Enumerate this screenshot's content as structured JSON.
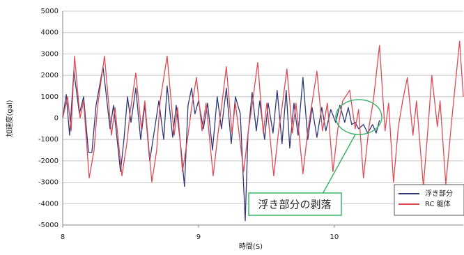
{
  "chart_data": {
    "type": "line",
    "xlabel": "時間(S)",
    "ylabel": "加速度(gal)",
    "xlim": [
      8,
      10.95
    ],
    "xticks": [
      8,
      9,
      10
    ],
    "ylim": [
      -5000,
      5000
    ],
    "yticks": [
      -5000,
      -4000,
      -3000,
      -2000,
      -1000,
      0,
      1000,
      2000,
      3000,
      4000,
      5000
    ],
    "grid": true,
    "legend": "lower right",
    "annotation": "浮き部分の剥落",
    "series": [
      {
        "name": "浮き部分",
        "color": "#2e3878",
        "x": [
          8.0,
          8.026,
          8.051,
          8.082,
          8.123,
          8.154,
          8.19,
          8.215,
          8.246,
          8.297,
          8.349,
          8.374,
          8.426,
          8.451,
          8.477,
          8.503,
          8.538,
          8.574,
          8.605,
          8.641,
          8.677,
          8.708,
          8.744,
          8.769,
          8.81,
          8.836,
          8.872,
          8.897,
          8.923,
          8.949,
          8.974,
          9.0,
          9.036,
          9.067,
          9.103,
          9.138,
          9.169,
          9.205,
          9.241,
          9.272,
          9.308,
          9.344,
          9.364,
          9.395,
          9.426,
          9.451,
          9.487,
          9.513,
          9.549,
          9.579,
          9.615,
          9.646,
          9.672,
          9.703,
          9.733,
          9.769,
          9.805,
          9.836,
          9.872,
          9.908,
          9.938,
          9.974,
          10.01,
          10.041,
          10.077,
          10.103,
          10.128,
          10.154,
          10.179,
          10.215,
          10.246,
          10.282,
          10.308,
          10.333
        ],
        "values": [
          0,
          1100,
          -800,
          2200,
          200,
          1000,
          -1600,
          -1600,
          600,
          2400,
          -500,
          600,
          -2500,
          -1000,
          1000,
          -200,
          1400,
          -1000,
          600,
          -2000,
          -500,
          800,
          -1000,
          1500,
          -900,
          600,
          -1500,
          -3200,
          600,
          1400,
          200,
          800,
          -500,
          700,
          -1500,
          1000,
          -500,
          1400,
          -1200,
          1000,
          200,
          -4800,
          -800,
          1200,
          -600,
          800,
          -1000,
          700,
          -700,
          1300,
          -1200,
          1300,
          -1400,
          700,
          -800,
          1900,
          -1000,
          500,
          -900,
          500,
          -600,
          400,
          -200,
          600,
          -200,
          500,
          -300,
          -200,
          -500,
          -300,
          -700,
          -300,
          -700,
          -100
        ]
      },
      {
        "name": "RC 躯体",
        "color": "#e04a55",
        "x": [
          8.0,
          8.036,
          8.062,
          8.087,
          8.128,
          8.154,
          8.195,
          8.231,
          8.256,
          8.308,
          8.359,
          8.385,
          8.436,
          8.472,
          8.497,
          8.538,
          8.579,
          8.605,
          8.656,
          8.692,
          8.718,
          8.769,
          8.821,
          8.846,
          8.882,
          8.923,
          8.949,
          8.985,
          9.026,
          9.056,
          9.108,
          9.144,
          9.169,
          9.205,
          9.246,
          9.272,
          9.333,
          9.369,
          9.395,
          9.436,
          9.477,
          9.503,
          9.554,
          9.59,
          9.615,
          9.651,
          9.692,
          9.718,
          9.769,
          9.805,
          9.831,
          9.872,
          9.913,
          9.949,
          9.99,
          10.026,
          10.062,
          10.113,
          10.154,
          10.179,
          10.215,
          10.256,
          10.287,
          10.333,
          10.374,
          10.4,
          10.436,
          10.472,
          10.503,
          10.538,
          10.579,
          10.605,
          10.656,
          10.692,
          10.718,
          10.759,
          10.779,
          10.821,
          10.862,
          10.882,
          10.923,
          10.95
        ],
        "values": [
          0,
          1000,
          -600,
          2900,
          0,
          800,
          -2800,
          -1500,
          500,
          2900,
          -800,
          500,
          -2700,
          -1200,
          300,
          2100,
          -500,
          800,
          -3000,
          -1500,
          800,
          2900,
          -800,
          500,
          -2500,
          -800,
          500,
          1900,
          -600,
          700,
          -2700,
          -700,
          500,
          2400,
          -700,
          700,
          -2500,
          -500,
          600,
          2600,
          -700,
          700,
          -2700,
          -600,
          500,
          2300,
          -700,
          700,
          -2600,
          -600,
          500,
          2200,
          -600,
          700,
          -2500,
          -500,
          800,
          1300,
          -500,
          400,
          -2800,
          -400,
          800,
          3400,
          -600,
          700,
          -3000,
          -400,
          800,
          1900,
          -800,
          800,
          -3200,
          -300,
          2000,
          -400,
          800,
          -3100,
          -300,
          1000,
          3600,
          1000
        ]
      }
    ]
  }
}
